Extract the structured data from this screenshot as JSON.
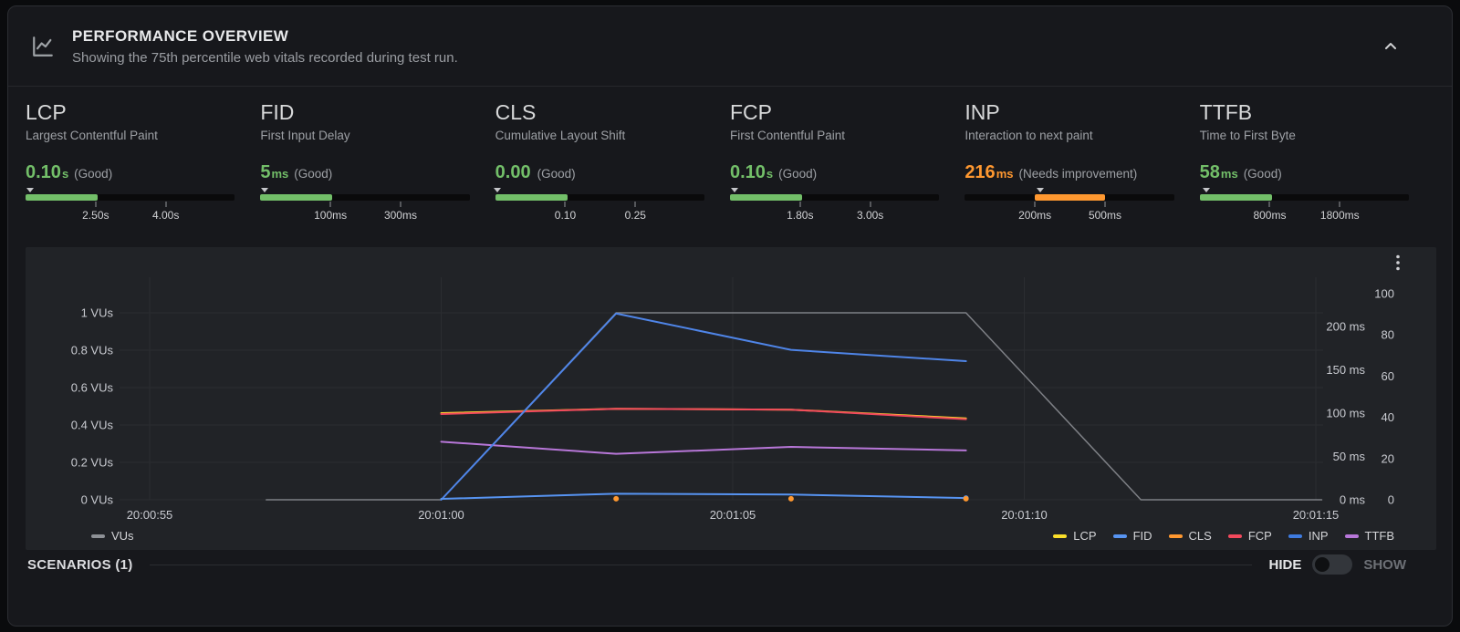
{
  "header": {
    "title": "PERFORMANCE OVERVIEW",
    "subtitle": "Showing the 75th percentile web vitals recorded during test run."
  },
  "metrics": [
    {
      "name": "LCP",
      "description": "Largest Contentful Paint",
      "value": "0.10",
      "unit": "s",
      "status": "(Good)",
      "color": "#73bf69",
      "zone": "first",
      "marker_pct": 2,
      "tick1_label": "2.50s",
      "tick2_label": "4.00s"
    },
    {
      "name": "FID",
      "description": "First Input Delay",
      "value": "5",
      "unit": "ms",
      "status": "(Good)",
      "color": "#73bf69",
      "zone": "first",
      "marker_pct": 2,
      "tick1_label": "100ms",
      "tick2_label": "300ms"
    },
    {
      "name": "CLS",
      "description": "Cumulative Layout Shift",
      "value": "0.00",
      "unit": "",
      "status": "(Good)",
      "color": "#73bf69",
      "zone": "first",
      "marker_pct": 1,
      "tick1_label": "0.10",
      "tick2_label": "0.25"
    },
    {
      "name": "FCP",
      "description": "First Contentful Paint",
      "value": "0.10",
      "unit": "s",
      "status": "(Good)",
      "color": "#73bf69",
      "zone": "first",
      "marker_pct": 2,
      "tick1_label": "1.80s",
      "tick2_label": "3.00s"
    },
    {
      "name": "INP",
      "description": "Interaction to next paint",
      "value": "216",
      "unit": "ms",
      "status": "(Needs improvement)",
      "color": "#ff9830",
      "zone": "middle",
      "marker_pct": 36,
      "tick1_label": "200ms",
      "tick2_label": "500ms"
    },
    {
      "name": "TTFB",
      "description": "Time to First Byte",
      "value": "58",
      "unit": "ms",
      "status": "(Good)",
      "color": "#73bf69",
      "zone": "first",
      "marker_pct": 3,
      "tick1_label": "800ms",
      "tick2_label": "1800ms"
    }
  ],
  "chart_data": {
    "type": "line",
    "x_ticks": [
      {
        "t": 55,
        "label": "20:00:55"
      },
      {
        "t": 60,
        "label": "20:01:00"
      },
      {
        "t": 65,
        "label": "20:01:05"
      },
      {
        "t": 70,
        "label": "20:01:10"
      },
      {
        "t": 75,
        "label": "20:01:15"
      }
    ],
    "axes": {
      "vus": {
        "labels": [
          {
            "v": 1,
            "label": "1 VUs"
          },
          {
            "v": 0.8,
            "label": "0.8 VUs"
          },
          {
            "v": 0.6,
            "label": "0.6 VUs"
          },
          {
            "v": 0.4,
            "label": "0.4 VUs"
          },
          {
            "v": 0.2,
            "label": "0.2 VUs"
          },
          {
            "v": 0,
            "label": "0 VUs"
          }
        ]
      },
      "ms": {
        "labels": [
          {
            "v": 200,
            "label": "200 ms"
          },
          {
            "v": 150,
            "label": "150 ms"
          },
          {
            "v": 100,
            "label": "100 ms"
          },
          {
            "v": 50,
            "label": "50 ms"
          },
          {
            "v": 0,
            "label": "0 ms"
          }
        ]
      },
      "scale": {
        "labels": [
          {
            "v": 100,
            "label": "100"
          },
          {
            "v": 80,
            "label": "80"
          },
          {
            "v": 60,
            "label": "60"
          },
          {
            "v": 40,
            "label": "40"
          },
          {
            "v": 20,
            "label": "20"
          },
          {
            "v": 0,
            "label": "0"
          }
        ]
      }
    },
    "series": [
      {
        "name": "VUs",
        "color": "#8e9196",
        "axis": "vus",
        "width": 1.5,
        "opacity": 0.85,
        "points": [
          [
            57,
            0
          ],
          [
            60,
            0
          ],
          [
            63,
            1
          ],
          [
            69,
            1
          ],
          [
            72,
            0
          ],
          [
            75.1,
            0
          ]
        ]
      },
      {
        "name": "LCP",
        "color": "#fade2a",
        "axis": "ms",
        "width": 2,
        "points": [
          [
            60,
            100
          ],
          [
            63,
            105
          ],
          [
            66,
            104
          ],
          [
            69,
            94
          ]
        ]
      },
      {
        "name": "FCP",
        "color": "#f2495c",
        "axis": "ms",
        "width": 2,
        "points": [
          [
            60,
            99
          ],
          [
            63,
            105
          ],
          [
            66,
            104
          ],
          [
            69,
            93
          ]
        ]
      },
      {
        "name": "TTFB",
        "color": "#b877d9",
        "axis": "ms",
        "width": 2,
        "points": [
          [
            60,
            67
          ],
          [
            63,
            53
          ],
          [
            66,
            61
          ],
          [
            69,
            57
          ]
        ]
      },
      {
        "name": "INP",
        "color": "#4f85e8",
        "axis": "ms",
        "width": 2,
        "points": [
          [
            60,
            0
          ],
          [
            63,
            215
          ],
          [
            66,
            173
          ],
          [
            69,
            160
          ]
        ]
      },
      {
        "name": "FID",
        "color": "#5794f2",
        "axis": "ms",
        "width": 2,
        "end_dot": true,
        "points": [
          [
            60,
            1
          ],
          [
            63,
            7
          ],
          [
            66,
            6
          ],
          [
            69,
            2
          ]
        ]
      },
      {
        "name": "CLS",
        "color": "#ff9830",
        "axis": "scale",
        "dots_only": true,
        "points": [
          [
            63,
            0.5
          ],
          [
            66,
            0.5
          ],
          [
            69,
            0.5
          ]
        ]
      }
    ],
    "legend_left": [
      {
        "label": "VUs",
        "color": "#8e9196"
      }
    ],
    "legend_right": [
      {
        "label": "LCP",
        "color": "#fade2a"
      },
      {
        "label": "FID",
        "color": "#5794f2"
      },
      {
        "label": "CLS",
        "color": "#ff9830"
      },
      {
        "label": "FCP",
        "color": "#f2495c"
      },
      {
        "label": "INP",
        "color": "#3e7be0"
      },
      {
        "label": "TTFB",
        "color": "#b877d9"
      }
    ]
  },
  "footer": {
    "scenarios_label": "SCENARIOS (1)",
    "hide_label": "HIDE",
    "show_label": "SHOW"
  }
}
